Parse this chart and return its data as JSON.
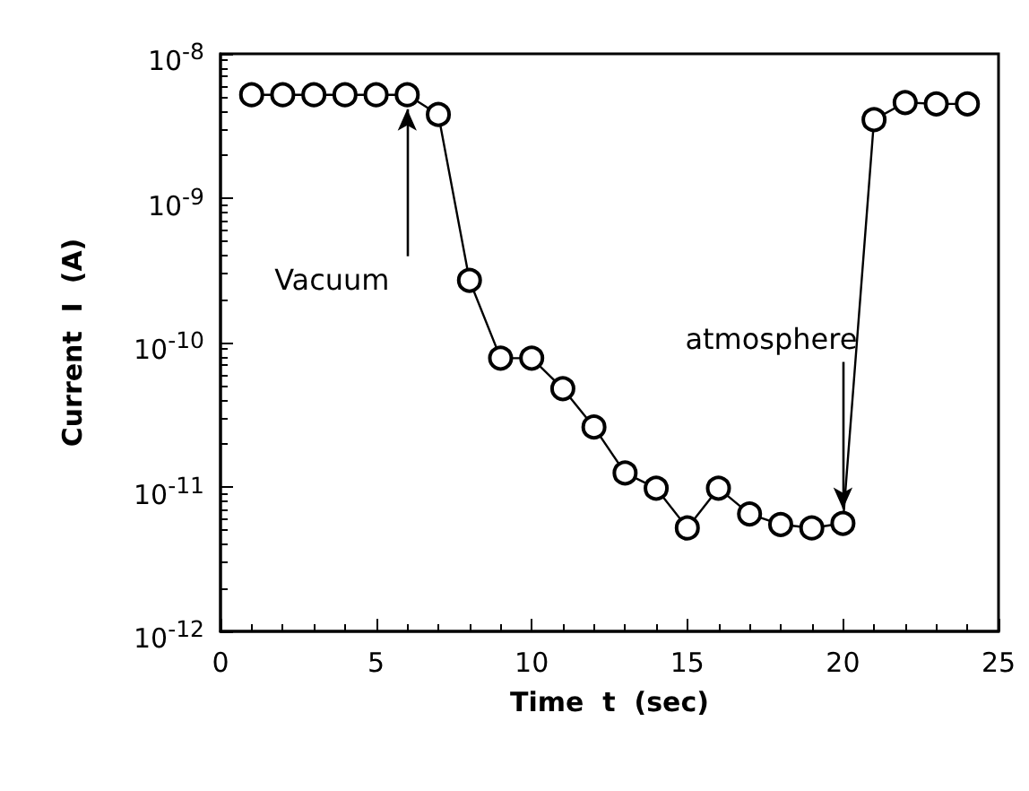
{
  "chart_data": {
    "type": "line",
    "xlabel": "Time  t  (sec)",
    "ylabel": "Current  I  (A)",
    "x": [
      1,
      2,
      3,
      4,
      5,
      6,
      7,
      8,
      9,
      10,
      11,
      12,
      13,
      14,
      15,
      16,
      17,
      18,
      19,
      20,
      21,
      22,
      23,
      24
    ],
    "series": [
      {
        "color": "#000000",
        "values": [
          5.2e-09,
          5.2e-09,
          5.2e-09,
          5.2e-09,
          5.2e-09,
          5.2e-09,
          3.8e-09,
          2.7e-10,
          7.8e-11,
          7.8e-11,
          4.8e-11,
          2.6e-11,
          1.25e-11,
          9.8e-12,
          5.2e-12,
          9.8e-12,
          6.5e-12,
          5.5e-12,
          5.2e-12,
          5.6e-12,
          3.5e-09,
          4.6e-09,
          4.5e-09,
          4.5e-09
        ]
      }
    ],
    "xlim": [
      0,
      25
    ],
    "xticks": [
      0,
      5,
      10,
      15,
      20,
      25
    ],
    "ylim": [
      1e-12,
      1e-08
    ],
    "yticks": [
      {
        "value": 1e-12,
        "label": "10$^{-12}$"
      },
      {
        "value": 1e-11,
        "label": "10$^{-11}$"
      },
      {
        "value": 1e-10,
        "label": "10$^{-10}$"
      },
      {
        "value": 1e-09,
        "label": "10$^{-9}$"
      },
      {
        "value": 1e-08,
        "label": "10$^{-8}$"
      }
    ],
    "log": "y",
    "grid": false,
    "marker": "circle",
    "line_style": "solid",
    "annotations": [
      {
        "text": "Vacuum",
        "x": 6,
        "y": 5.2e-09
      },
      {
        "text": "atmosphere",
        "x": 20,
        "y": 5.6e-12
      }
    ]
  }
}
